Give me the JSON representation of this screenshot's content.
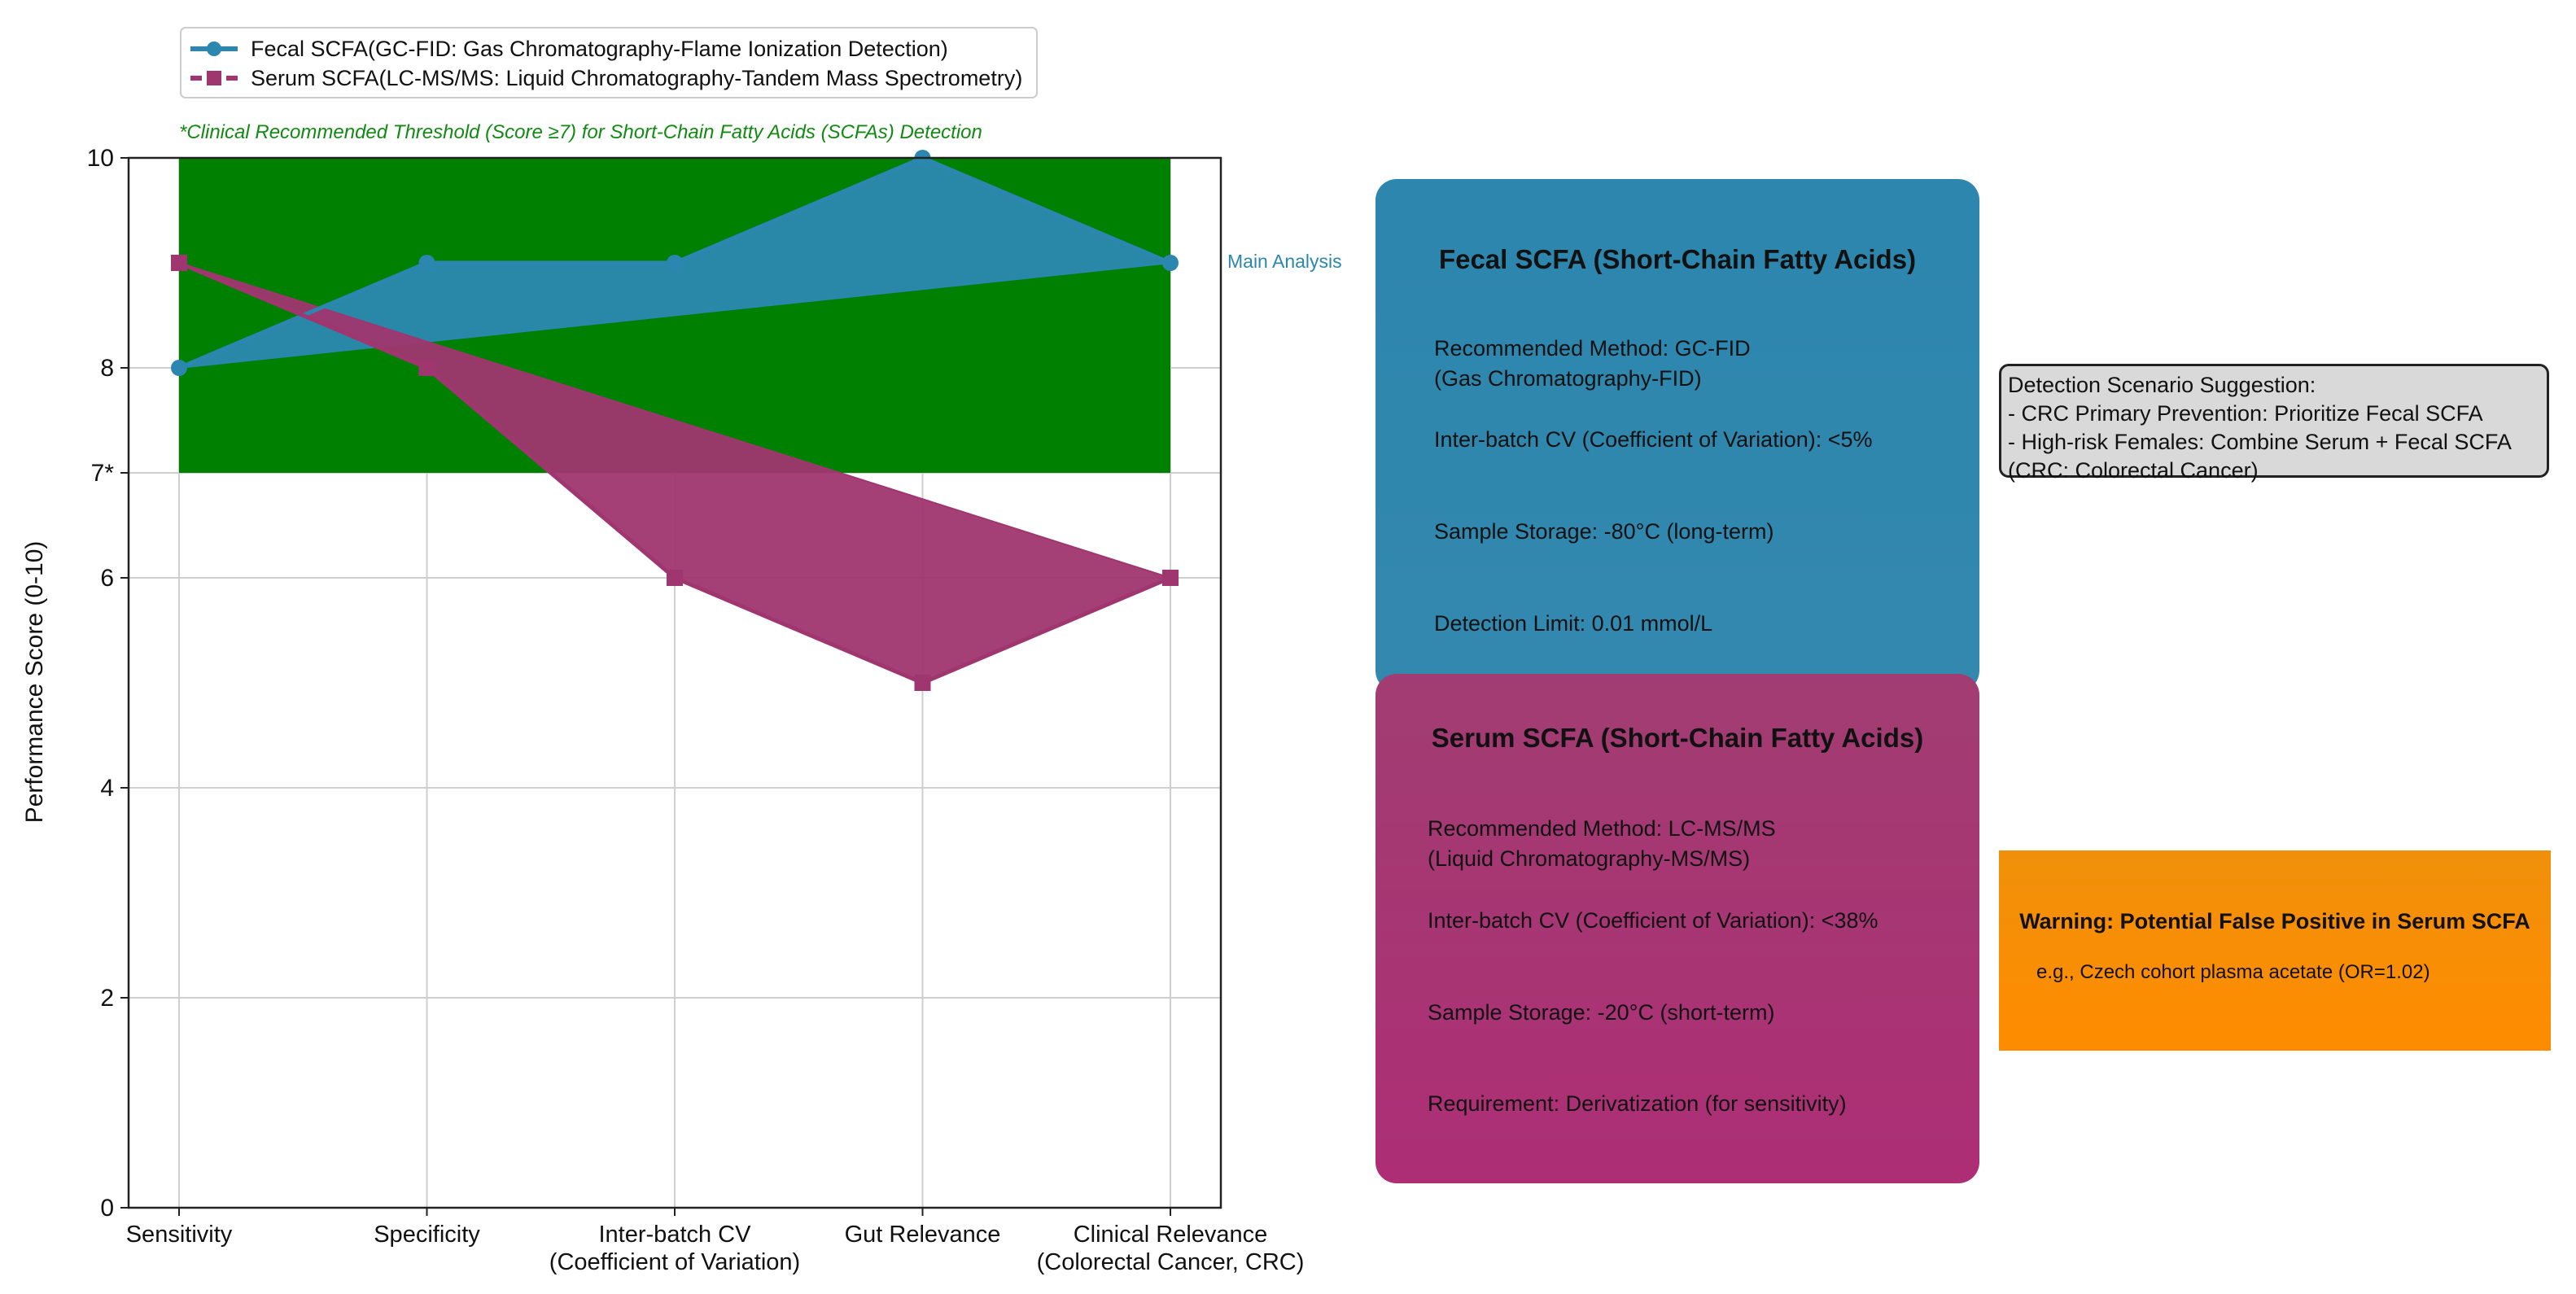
{
  "chart_data": {
    "type": "line",
    "categories": [
      "Sensitivity",
      "Specificity",
      "Inter-batch CV\n(Coefficient of Variation)",
      "Gut Relevance",
      "Clinical Relevance\n(Colorectal Cancer, CRC)"
    ],
    "series": [
      {
        "name": "Fecal SCFA(GC-FID: Gas Chromatography-Flame Ionization Detection)",
        "values": [
          8,
          9,
          9,
          10,
          9
        ],
        "color": "#2b87b0",
        "marker": "circle"
      },
      {
        "name": "Serum SCFA(LC-MS/MS: Liquid Chromatography-Tandem Mass Spectrometry)",
        "values": [
          9,
          8,
          6,
          5,
          6
        ],
        "color": "#a0366f",
        "marker": "square"
      }
    ],
    "ylabel": "Performance Score (0-10)",
    "ylim": [
      0,
      10
    ],
    "yticks": [
      {
        "value": 0,
        "label": "0"
      },
      {
        "value": 2,
        "label": "2"
      },
      {
        "value": 4,
        "label": "4"
      },
      {
        "value": 6,
        "label": "6"
      },
      {
        "value": 7,
        "label": "7*"
      },
      {
        "value": 8,
        "label": "8"
      },
      {
        "value": 10,
        "label": "10"
      }
    ],
    "threshold": {
      "value": 7,
      "label": "*Clinical Recommended Threshold (Score ≥7) for Short-Chain Fatty Acids (SCFAs) Detection",
      "color": "#008000"
    },
    "series_annotation": "Main Analysis",
    "grid": true,
    "legend": "top-left"
  },
  "fecal_panel": {
    "title": "Fecal SCFA (Short-Chain Fatty Acids)",
    "method": "Recommended Method: GC-FID\n(Gas Chromatography-FID)",
    "cv": "Inter-batch CV (Coefficient of Variation): <5%",
    "storage": "Sample Storage: -80°C (long-term)",
    "limit": "Detection Limit: 0.01 mmol/L",
    "color": "#2c87ae"
  },
  "serum_panel": {
    "title": "Serum SCFA (Short-Chain Fatty Acids)",
    "method": "Recommended Method: LC-MS/MS\n(Liquid Chromatography-MS/MS)",
    "cv": "Inter-batch CV (Coefficient of Variation): <38%",
    "storage": "Sample Storage: -20°C (short-term)",
    "requirement": "Requirement: Derivatization (for sensitivity)",
    "color": "#a8306f"
  },
  "scenario": {
    "title": "Detection Scenario Suggestion:",
    "line1": "- CRC Primary Prevention: Prioritize Fecal SCFA",
    "line2": "- High-risk Females: Combine Serum + Fecal SCFA",
    "line3": "(CRC: Colorectal Cancer)"
  },
  "warning": {
    "title": "Warning: Potential False Positive in Serum SCFA",
    "example": "e.g., Czech cohort plasma acetate (OR=1.02)",
    "color": "#f7900a"
  }
}
